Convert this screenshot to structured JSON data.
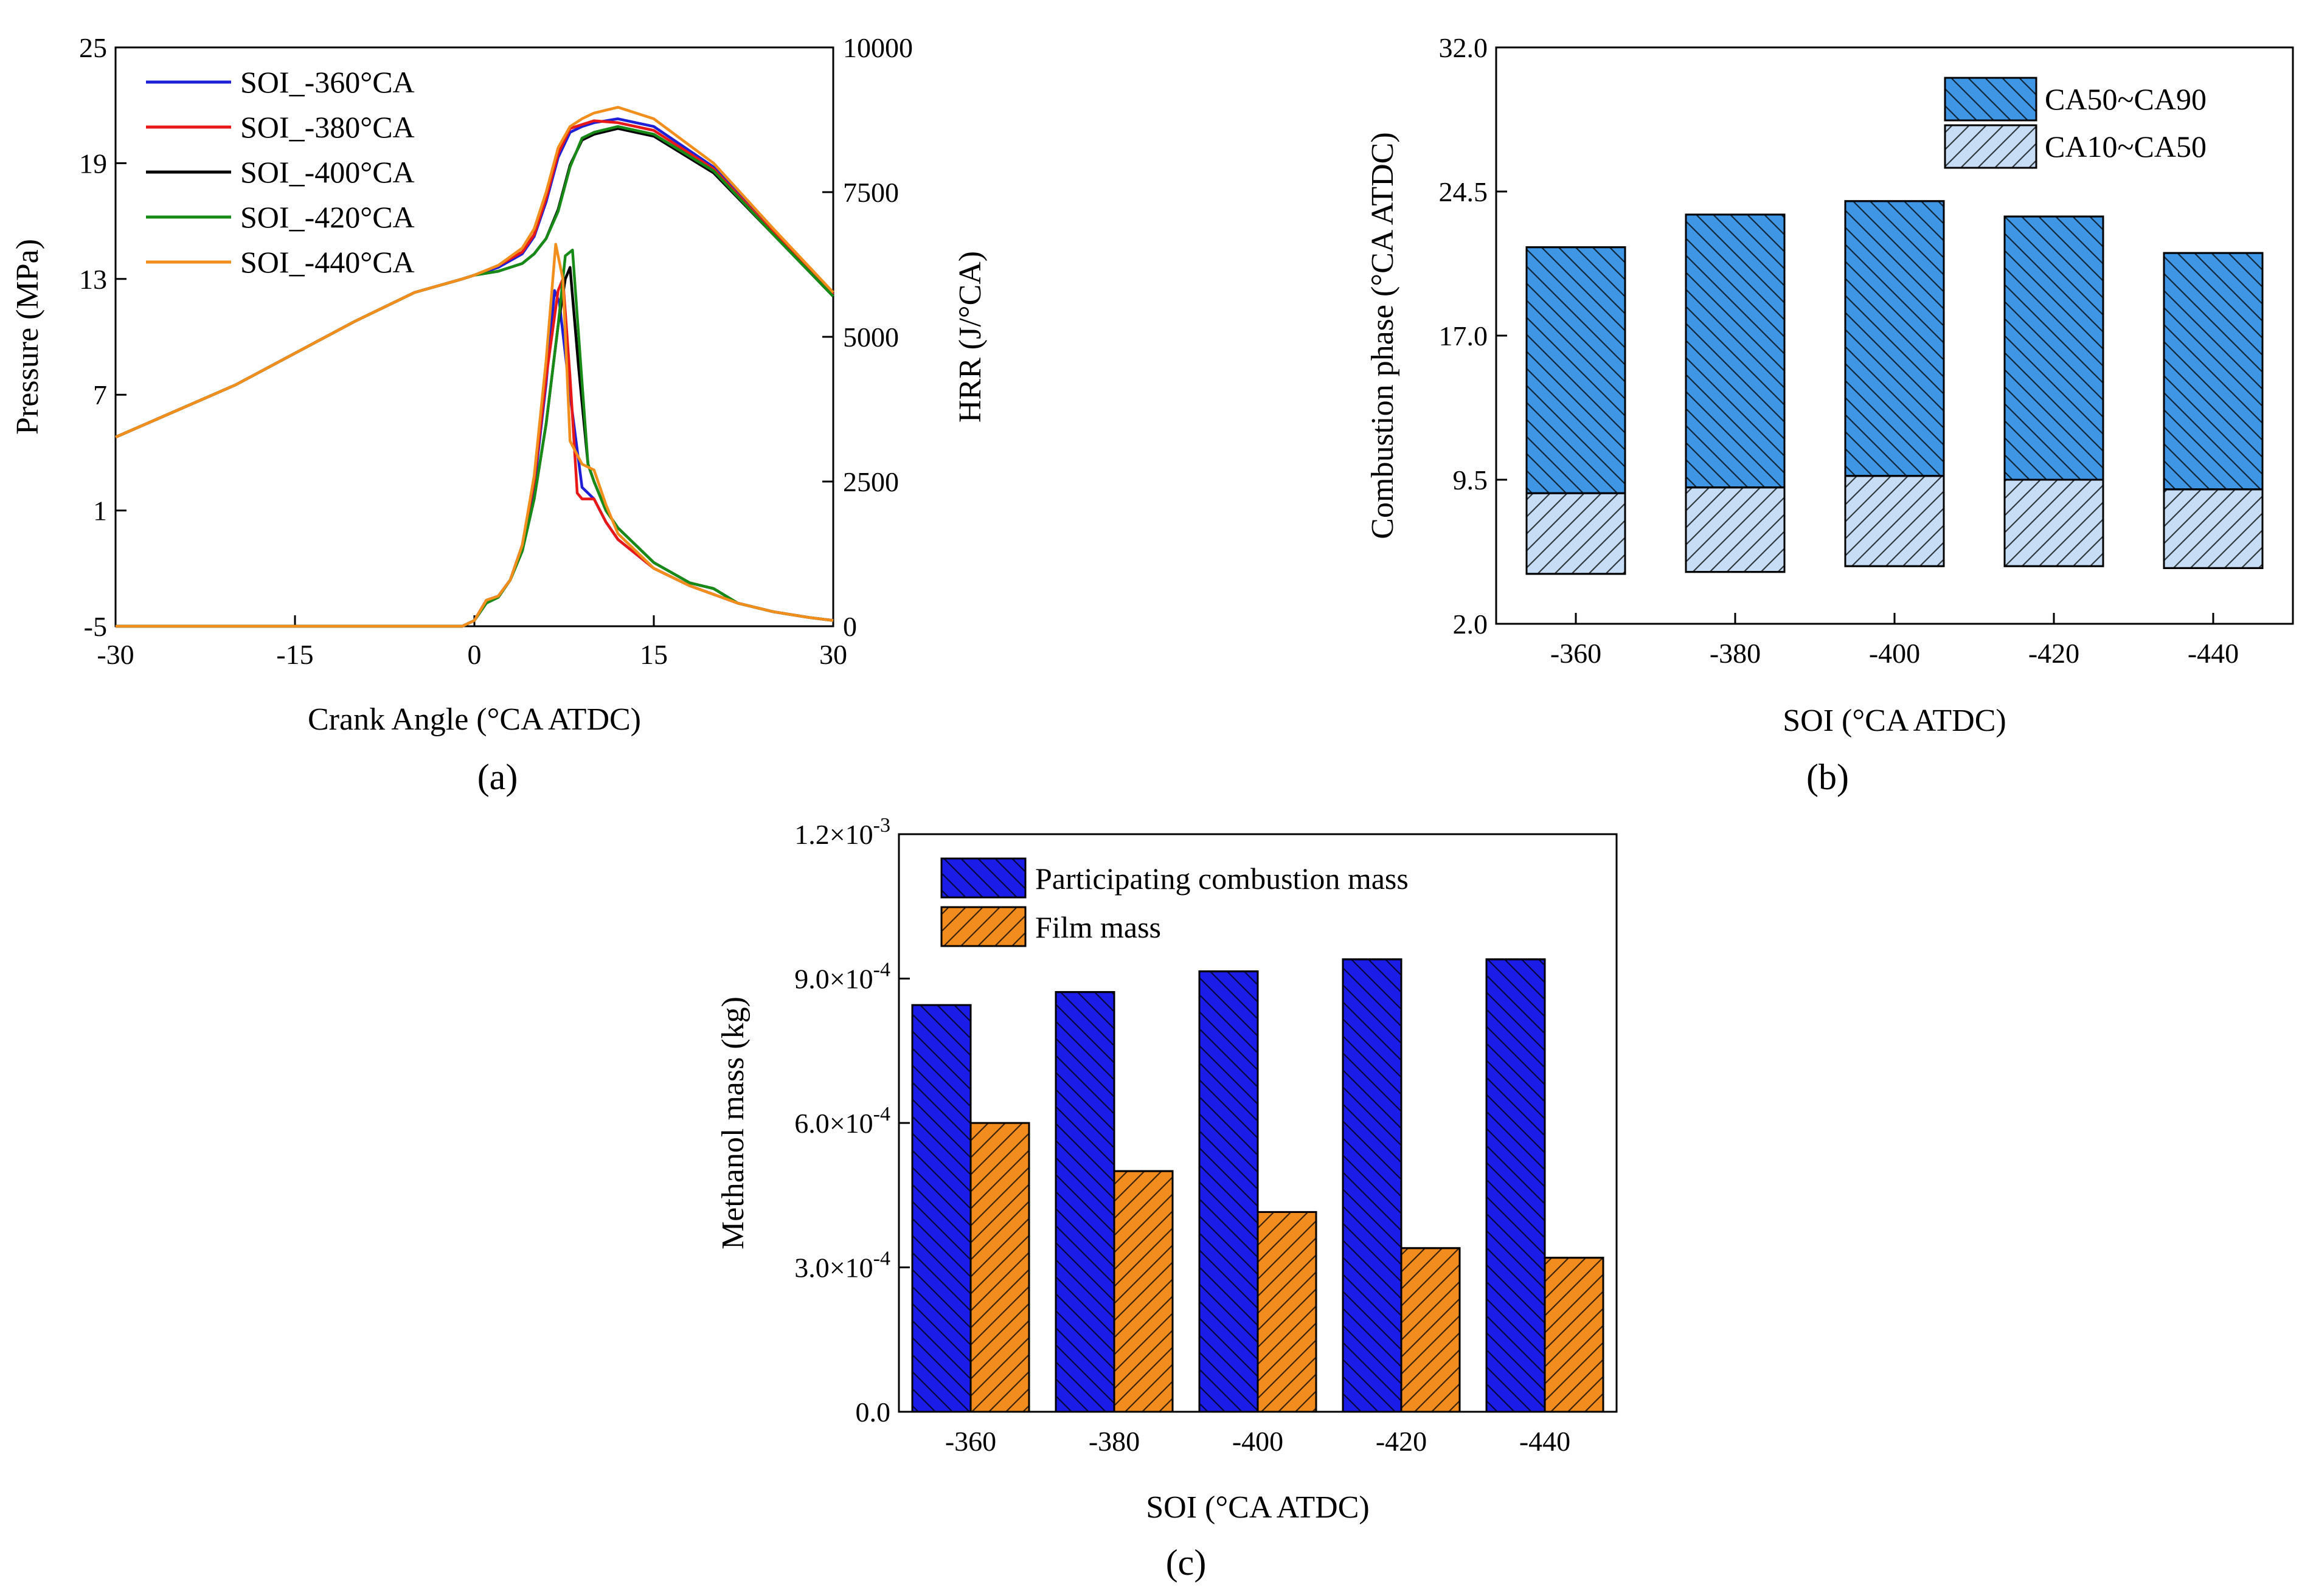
{
  "figure": {
    "labels": {
      "a": "(a)",
      "b": "(b)",
      "c": "(c)"
    }
  },
  "chart_data": [
    {
      "id": "a",
      "type": "line",
      "xlabel": "Crank Angle (°CA ATDC)",
      "ylabel": "Pressure (MPa)",
      "y2label": "HRR (J/°CA)",
      "xlim": [
        -30,
        30
      ],
      "ylim": [
        -5,
        25
      ],
      "y2lim": [
        0,
        10000
      ],
      "xticks": [
        "-30",
        "-15",
        "0",
        "15",
        "30"
      ],
      "yticks": [
        "-5",
        "1",
        "7",
        "13",
        "19",
        "25"
      ],
      "y2ticks": [
        "0",
        "2500",
        "5000",
        "7500",
        "10000"
      ],
      "legend": "top-left",
      "series": [
        {
          "name": "SOI_-360°CA",
          "color": "#1f1fd6",
          "pressure": {
            "x": [
              -30,
              -20,
              -10,
              -5,
              -1,
              0,
              2,
              4,
              5,
              6,
              7,
              8,
              9,
              10,
              12,
              15,
              20,
              25,
              30
            ],
            "y": [
              4.8,
              7.5,
              10.8,
              12.3,
              13.0,
              13.2,
              13.6,
              14.3,
              15.2,
              17.0,
              19.3,
              20.6,
              20.9,
              21.1,
              21.3,
              20.9,
              18.8,
              15.5,
              12.2
            ]
          },
          "hrr": {
            "x": [
              -30,
              -1,
              0,
              1,
              2,
              3,
              4,
              5,
              6,
              6.7,
              7.1,
              8,
              9,
              10,
              11,
              12,
              15,
              18,
              20,
              22,
              25,
              28,
              30
            ],
            "y": [
              0,
              0,
              100,
              450,
              520,
              800,
              1400,
              2400,
              4200,
              5800,
              5600,
              4000,
              2400,
              2200,
              1800,
              1500,
              1000,
              700,
              550,
              400,
              250,
              150,
              100
            ]
          }
        },
        {
          "name": "SOI_-380°CA",
          "color": "#e81818",
          "pressure": {
            "x": [
              -30,
              -20,
              -10,
              -5,
              -1,
              0,
              2,
              4,
              5,
              6,
              7,
              8,
              9,
              10,
              12,
              15,
              20,
              25,
              30
            ],
            "y": [
              4.8,
              7.5,
              10.8,
              12.3,
              13.0,
              13.2,
              13.7,
              14.4,
              15.3,
              17.2,
              19.5,
              20.8,
              21.0,
              21.2,
              21.1,
              20.7,
              18.7,
              15.4,
              12.2
            ]
          },
          "hrr": {
            "x": [
              -30,
              -1,
              0,
              1,
              2,
              3,
              4,
              5,
              6,
              7,
              7.4,
              8,
              8.6,
              9,
              10,
              11,
              12,
              15,
              18,
              20,
              22,
              25,
              28,
              30
            ],
            "y": [
              0,
              0,
              100,
              450,
              520,
              800,
              1400,
              2500,
              4300,
              5800,
              6000,
              4300,
              2300,
              2200,
              2200,
              1800,
              1500,
              1000,
              700,
              550,
              400,
              250,
              150,
              100
            ]
          }
        },
        {
          "name": "SOI_-400°CA",
          "color": "#000000",
          "pressure": {
            "x": [
              -30,
              -20,
              -10,
              -5,
              -1,
              0,
              2,
              4,
              5,
              6,
              7,
              8,
              9,
              10,
              12,
              15,
              20,
              25,
              30
            ],
            "y": [
              4.8,
              7.5,
              10.8,
              12.3,
              13.0,
              13.2,
              13.4,
              13.8,
              14.3,
              15.1,
              16.6,
              18.9,
              20.2,
              20.5,
              20.8,
              20.4,
              18.5,
              15.3,
              12.1
            ]
          },
          "hrr": {
            "x": [
              -30,
              -1,
              0,
              1,
              2,
              3,
              4,
              5,
              6,
              7,
              7.6,
              8,
              8.7,
              9.5,
              10,
              11,
              12,
              15,
              18,
              20,
              22,
              25,
              28,
              30
            ],
            "y": [
              0,
              0,
              100,
              400,
              500,
              800,
              1300,
              2200,
              3500,
              5200,
              6000,
              6200,
              4500,
              2800,
              2500,
              2000,
              1700,
              1100,
              750,
              650,
              400,
              250,
              150,
              100
            ]
          }
        },
        {
          "name": "SOI_-420°CA",
          "color": "#178a17",
          "pressure": {
            "x": [
              -30,
              -20,
              -10,
              -5,
              -1,
              0,
              2,
              4,
              5,
              6,
              7,
              8,
              9,
              10,
              12,
              15,
              20,
              25,
              30
            ],
            "y": [
              4.8,
              7.5,
              10.8,
              12.3,
              13.0,
              13.2,
              13.4,
              13.8,
              14.3,
              15.1,
              16.5,
              18.8,
              20.3,
              20.6,
              20.9,
              20.5,
              18.6,
              15.3,
              12.1
            ]
          },
          "hrr": {
            "x": [
              -30,
              -1,
              0,
              1,
              2,
              3,
              4,
              5,
              6,
              7,
              7.6,
              8.2,
              8.9,
              9.5,
              10,
              11,
              12,
              15,
              18,
              20,
              22,
              25,
              28,
              30
            ],
            "y": [
              0,
              0,
              100,
              400,
              500,
              800,
              1300,
              2200,
              3500,
              5200,
              6400,
              6500,
              4500,
              2800,
              2500,
              2000,
              1700,
              1100,
              750,
              650,
              400,
              250,
              150,
              100
            ]
          }
        },
        {
          "name": "SOI_-440°CA",
          "color": "#f28e1c",
          "pressure": {
            "x": [
              -30,
              -20,
              -10,
              -5,
              -1,
              0,
              2,
              4,
              5,
              6,
              7,
              8,
              9,
              10,
              12,
              15,
              20,
              25,
              30
            ],
            "y": [
              4.8,
              7.5,
              10.8,
              12.3,
              13.0,
              13.2,
              13.7,
              14.6,
              15.6,
              17.5,
              19.8,
              20.9,
              21.3,
              21.6,
              21.9,
              21.3,
              19.0,
              15.6,
              12.3
            ]
          },
          "hrr": {
            "x": [
              -30,
              -1,
              0,
              1,
              2,
              3,
              4,
              5,
              6,
              6.8,
              7.4,
              8,
              9,
              10,
              11,
              12,
              15,
              18,
              20,
              22,
              25,
              28,
              30
            ],
            "y": [
              0,
              0,
              100,
              450,
              520,
              800,
              1400,
              2600,
              4600,
              6600,
              6000,
              3200,
              2800,
              2700,
              2100,
              1600,
              1000,
              700,
              550,
              400,
              250,
              150,
              100
            ]
          }
        }
      ]
    },
    {
      "id": "b",
      "type": "bar",
      "stacked": true,
      "xlabel": "SOI (°CA ATDC)",
      "ylabel": "Combustion phase (°CA ATDC)",
      "ylim": [
        2.0,
        32.0
      ],
      "yticks": [
        "2.0",
        "9.5",
        "17.0",
        "24.5",
        "32.0"
      ],
      "categories": [
        "-360",
        "-380",
        "-400",
        "-420",
        "-440"
      ],
      "legend": "top-right",
      "series": [
        {
          "name": "CA10~CA50",
          "color": "#c6ddf5",
          "low": [
            4.6,
            4.7,
            5.0,
            5.0,
            4.9
          ],
          "high": [
            8.8,
            9.1,
            9.7,
            9.5,
            9.0
          ]
        },
        {
          "name": "CA50~CA90",
          "color": "#3f96e5",
          "low": [
            8.8,
            9.1,
            9.7,
            9.5,
            9.0
          ],
          "high": [
            21.6,
            23.3,
            24.0,
            23.2,
            21.3
          ]
        }
      ]
    },
    {
      "id": "c",
      "type": "bar",
      "xlabel": "SOI (°CA ATDC)",
      "ylabel": "Methanol mass (kg)",
      "ylim": [
        0,
        0.0012
      ],
      "yticks": [
        {
          "mant": "0.0",
          "exp": ""
        },
        {
          "mant": "3.0×10",
          "exp": "-4"
        },
        {
          "mant": "6.0×10",
          "exp": "-4"
        },
        {
          "mant": "9.0×10",
          "exp": "-4"
        },
        {
          "mant": "1.2×10",
          "exp": "-3"
        }
      ],
      "categories": [
        "-360",
        "-380",
        "-400",
        "-420",
        "-440"
      ],
      "legend": "top-left",
      "series": [
        {
          "name": "Participating combustion mass",
          "color": "#1c1ce8",
          "values": [
            0.000845,
            0.000872,
            0.000915,
            0.00094,
            0.00094
          ]
        },
        {
          "name": "Film mass",
          "color": "#f28c1e",
          "values": [
            0.0006,
            0.0005,
            0.000415,
            0.00034,
            0.00032
          ]
        }
      ]
    }
  ]
}
